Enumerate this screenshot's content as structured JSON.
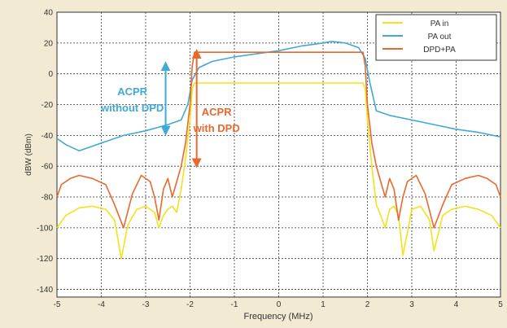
{
  "chart_data": {
    "type": "line",
    "title": "",
    "xlabel": "Frequency (MHz)",
    "ylabel": "dBW (dBm)",
    "xlim": [
      -5,
      5
    ],
    "ylim": [
      -145,
      40
    ],
    "xticks": [
      -5,
      -4,
      -3,
      -2,
      -1,
      0,
      1,
      2,
      3,
      4,
      5
    ],
    "yticks": [
      40,
      20,
      0,
      -20,
      -40,
      -60,
      -80,
      -100,
      -120,
      -140
    ],
    "grid": true,
    "legend_position": "top-right",
    "series": [
      {
        "name": "PA in",
        "color": "#f2e21c",
        "x": [
          -5.0,
          -4.8,
          -4.5,
          -4.2,
          -3.9,
          -3.7,
          -3.55,
          -3.4,
          -3.2,
          -3.0,
          -2.8,
          -2.7,
          -2.6,
          -2.5,
          -2.4,
          -2.3,
          -2.2,
          -2.1,
          -2.0,
          -1.95,
          -1.9,
          -1.5,
          -1.0,
          -0.5,
          0.0,
          0.5,
          1.0,
          1.5,
          1.9,
          1.95,
          2.0,
          2.1,
          2.2,
          2.3,
          2.4,
          2.5,
          2.6,
          2.7,
          2.8,
          3.0,
          3.2,
          3.4,
          3.5,
          3.7,
          3.9,
          4.2,
          4.5,
          4.8,
          5.0
        ],
        "y": [
          -100,
          -92,
          -87,
          -86,
          -88,
          -95,
          -120,
          -98,
          -88,
          -86,
          -90,
          -100,
          -92,
          -88,
          -86,
          -90,
          -75,
          -55,
          -30,
          -10,
          -6,
          -6,
          -6,
          -6,
          -6,
          -6,
          -6,
          -6,
          -6,
          -10,
          -30,
          -60,
          -85,
          -92,
          -100,
          -88,
          -86,
          -92,
          -118,
          -88,
          -86,
          -95,
          -115,
          -92,
          -88,
          -86,
          -88,
          -92,
          -100
        ]
      },
      {
        "name": "PA out",
        "color": "#3fa9d8",
        "x": [
          -5.0,
          -4.8,
          -4.5,
          -4.3,
          -4.0,
          -3.5,
          -3.0,
          -2.5,
          -2.2,
          -2.05,
          -1.95,
          -1.8,
          -1.5,
          -1.0,
          -0.5,
          0.0,
          0.5,
          1.0,
          1.2,
          1.5,
          1.8,
          1.95,
          2.05,
          2.2,
          2.5,
          3.0,
          3.5,
          4.0,
          4.5,
          5.0
        ],
        "y": [
          -42,
          -46,
          -50,
          -48,
          -45,
          -40,
          -37,
          -33,
          -30,
          -20,
          -4,
          4,
          8,
          11,
          13,
          15,
          18,
          20,
          21,
          20,
          17,
          10,
          -5,
          -24,
          -27,
          -30,
          -33,
          -36,
          -38,
          -41
        ]
      },
      {
        "name": "DPD+PA",
        "color": "#e8692e",
        "x": [
          -5.0,
          -4.9,
          -4.7,
          -4.5,
          -4.2,
          -3.9,
          -3.7,
          -3.5,
          -3.3,
          -3.1,
          -2.9,
          -2.8,
          -2.7,
          -2.6,
          -2.5,
          -2.4,
          -2.3,
          -2.2,
          -2.1,
          -2.0,
          -1.95,
          -1.9,
          -1.5,
          -1.0,
          -0.5,
          0.0,
          0.5,
          1.0,
          1.5,
          1.9,
          1.95,
          2.0,
          2.1,
          2.2,
          2.3,
          2.4,
          2.5,
          2.6,
          2.7,
          2.8,
          2.9,
          3.1,
          3.3,
          3.5,
          3.7,
          3.9,
          4.2,
          4.5,
          4.7,
          4.9,
          5.0
        ],
        "y": [
          -80,
          -72,
          -68,
          -66,
          -68,
          -72,
          -85,
          -100,
          -78,
          -66,
          -70,
          -80,
          -95,
          -75,
          -68,
          -80,
          -70,
          -60,
          -45,
          -20,
          5,
          14,
          14,
          14,
          14,
          14,
          14,
          14,
          14,
          14,
          5,
          -20,
          -45,
          -60,
          -70,
          -80,
          -68,
          -75,
          -95,
          -80,
          -70,
          -66,
          -78,
          -100,
          -85,
          -72,
          -68,
          -66,
          -68,
          -72,
          -80
        ]
      }
    ],
    "annotations": [
      {
        "text_lines": [
          "ACPR",
          "without DPD"
        ],
        "color": "#3fa9d8",
        "x": -3.3,
        "y": -14,
        "arrow_x": -2.55,
        "arrow_y_from": 5,
        "arrow_y_to": -37
      },
      {
        "text_lines": [
          "ACPR",
          "with DPD"
        ],
        "color": "#e8692e",
        "x": -1.4,
        "y": -27,
        "arrow_x": -1.85,
        "arrow_y_from": 13,
        "arrow_y_to": -58
      }
    ]
  }
}
